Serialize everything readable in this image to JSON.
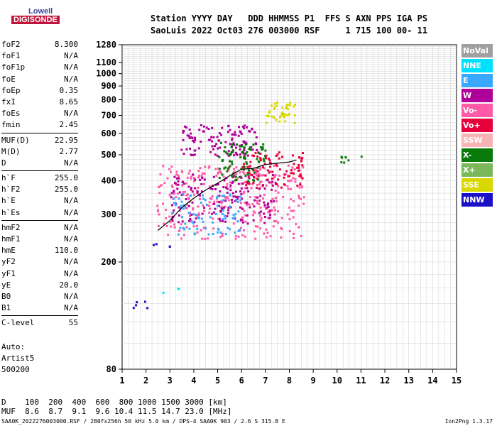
{
  "logo": {
    "line1": "Lowell",
    "line2": "DIGISONDE"
  },
  "header": {
    "labels": "Station YYYY DAY   DDD HHMMSS P1  FFS S AXN PPS IGA PS",
    "values": "SaoLuis 2022 Oct03 276 003000 RSF     1 715 100 00- 11"
  },
  "params": [
    {
      "k": "foF2",
      "v": "8.300"
    },
    {
      "k": "foF1",
      "v": "N/A"
    },
    {
      "k": "foF1p",
      "v": "N/A"
    },
    {
      "k": "foE",
      "v": "N/A"
    },
    {
      "k": "foEp",
      "v": "0.35"
    },
    {
      "k": "fxI",
      "v": "8.65"
    },
    {
      "k": "foEs",
      "v": "N/A"
    },
    {
      "k": "fmin",
      "v": "2.45"
    },
    {
      "sep": true
    },
    {
      "k": "MUF(D)",
      "v": "22.95"
    },
    {
      "k": "M(D)",
      "v": "2.77"
    },
    {
      "k": "D",
      "v": "N/A"
    },
    {
      "sep": true
    },
    {
      "k": "h`F",
      "v": "255.0"
    },
    {
      "k": "h`F2",
      "v": "255.0"
    },
    {
      "k": "h`E",
      "v": "N/A"
    },
    {
      "k": "h`Es",
      "v": "N/A"
    },
    {
      "sep": true
    },
    {
      "k": "hmF2",
      "v": "N/A"
    },
    {
      "k": "hmF1",
      "v": "N/A"
    },
    {
      "k": "hmE",
      "v": "110.0"
    },
    {
      "k": "yF2",
      "v": "N/A"
    },
    {
      "k": "yF1",
      "v": "N/A"
    },
    {
      "k": "yE",
      "v": "20.0"
    },
    {
      "k": "B0",
      "v": "N/A"
    },
    {
      "k": "B1",
      "v": "N/A"
    },
    {
      "sep": true
    },
    {
      "k": "C-level",
      "v": "55"
    }
  ],
  "auto": [
    "Auto:",
    "Artist5",
    "500200"
  ],
  "legend": [
    {
      "label": "NoVal",
      "color": "#a0a0a0"
    },
    {
      "label": "NNE",
      "color": "#00e0ff"
    },
    {
      "label": "E",
      "color": "#3aa8ff"
    },
    {
      "label": "W",
      "color": "#b0009a"
    },
    {
      "label": "Vo-",
      "color": "#ff5aa8"
    },
    {
      "label": "Vo+",
      "color": "#e8003a"
    },
    {
      "label": "SSW",
      "color": "#f8b4b4"
    },
    {
      "label": "X-",
      "color": "#0a7a0a"
    },
    {
      "label": "X+",
      "color": "#7ab85a"
    },
    {
      "label": "SSE",
      "color": "#d8d800"
    },
    {
      "label": "NNW",
      "color": "#1a10c8"
    }
  ],
  "footer": {
    "line1": "D    100  200  400  600  800 1000 1500 3000 [km]",
    "line2": "MUF  8.6  8.7  9.1  9.6 10.4 11.5 14.7 23.0 [MHz]"
  },
  "bottom": "SAA0K_2022276003000.RSF / 280fx256h 50 kHz 5.0 km / DPS-4 SAA0K 903 / 2.6 S 315.8 E",
  "version": "Ion2Png 1.3.17",
  "chart_data": {
    "type": "scatter",
    "title": "",
    "xlabel": "",
    "ylabel": "",
    "xlim": [
      1,
      15
    ],
    "ylim": [
      80,
      1280
    ],
    "yscale": "log",
    "xticks": [
      1,
      2,
      3,
      4,
      5,
      6,
      7,
      8,
      9,
      10,
      11,
      12,
      13,
      14,
      15
    ],
    "yticks": [
      80,
      200,
      300,
      400,
      500,
      600,
      700,
      800,
      900,
      1000,
      1100,
      1280
    ],
    "grid": true,
    "series": [
      {
        "name": "h`F trace",
        "x": [
          2.5,
          3.0,
          3.5,
          4.0,
          4.5,
          5.0,
          5.5,
          6.0,
          6.5,
          7.0,
          7.5,
          8.0,
          8.3
        ],
        "y": [
          262,
          285,
          318,
          345,
          370,
          392,
          418,
          442,
          445,
          460,
          465,
          470,
          478
        ]
      }
    ],
    "clusters": [
      {
        "x": [
          2.4,
          8.6
        ],
        "y": [
          245,
          460
        ],
        "color": "#ff5aa8"
      },
      {
        "x": [
          3.0,
          7.4
        ],
        "y": [
          280,
          430
        ],
        "color": "#b0009a"
      },
      {
        "x": [
          6.0,
          8.6
        ],
        "y": [
          380,
          520
        ],
        "color": "#e8003a"
      },
      {
        "x": [
          3.4,
          6.6
        ],
        "y": [
          500,
          650
        ],
        "color": "#b0009a"
      },
      {
        "x": [
          7.0,
          8.2
        ],
        "y": [
          660,
          800
        ],
        "color": "#d8d800"
      },
      {
        "x": [
          2.0,
          3.0
        ],
        "y": [
          225,
          240
        ],
        "color": "#1a10c8"
      },
      {
        "x": [
          1.1,
          3.2
        ],
        "y": [
          135,
          145
        ],
        "color": "#1a10c8"
      },
      {
        "x": [
          2.6,
          3.4
        ],
        "y": [
          155,
          172
        ],
        "color": "#00e0ff"
      },
      {
        "x": [
          10.0,
          11.0
        ],
        "y": [
          470,
          500
        ],
        "color": "#0a7a0a"
      },
      {
        "x": [
          3.0,
          6.0
        ],
        "y": [
          255,
          360
        ],
        "color": "#3aa8ff"
      },
      {
        "x": [
          5.0,
          7.0
        ],
        "y": [
          400,
          560
        ],
        "color": "#0a7a0a"
      }
    ]
  }
}
